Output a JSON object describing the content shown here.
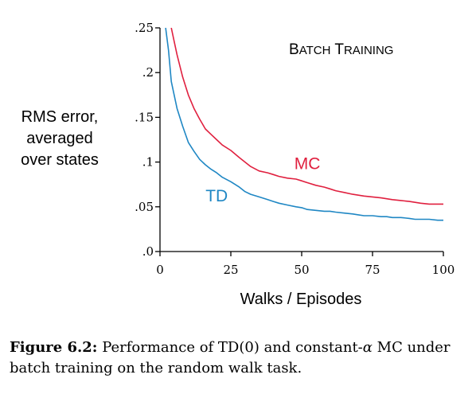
{
  "chart_data": {
    "type": "line",
    "title_lead": [
      "B",
      "T"
    ],
    "title_rest": [
      "ATCH",
      "RAINING"
    ],
    "xlabel": "Walks / Episodes",
    "ylabel_lines": [
      "RMS error,",
      "averaged",
      "over states"
    ],
    "xlim": [
      0,
      100
    ],
    "ylim": [
      0,
      0.25
    ],
    "xticks": [
      0,
      25,
      50,
      75,
      100
    ],
    "xtick_labels": [
      "0",
      "25",
      "50",
      "75",
      "100"
    ],
    "yticks": [
      0,
      0.05,
      0.1,
      0.15,
      0.2,
      0.25
    ],
    "ytick_labels": [
      ".0",
      ".05",
      ".1",
      ".15",
      ".2",
      ".25"
    ],
    "series": [
      {
        "name": "MC",
        "color": "#e0203f",
        "x": [
          4,
          5,
          6,
          8,
          10,
          12,
          14,
          16,
          18,
          20,
          22,
          25,
          28,
          30,
          32,
          35,
          38,
          40,
          42,
          45,
          48,
          50,
          52,
          55,
          58,
          60,
          62,
          65,
          68,
          70,
          72,
          75,
          78,
          80,
          82,
          85,
          88,
          90,
          92,
          95,
          98,
          100
        ],
        "y": [
          0.25,
          0.235,
          0.22,
          0.195,
          0.175,
          0.16,
          0.148,
          0.137,
          0.131,
          0.125,
          0.119,
          0.113,
          0.105,
          0.1,
          0.095,
          0.09,
          0.088,
          0.086,
          0.084,
          0.082,
          0.081,
          0.079,
          0.077,
          0.074,
          0.072,
          0.07,
          0.068,
          0.066,
          0.064,
          0.063,
          0.062,
          0.061,
          0.06,
          0.059,
          0.058,
          0.057,
          0.056,
          0.055,
          0.054,
          0.053,
          0.053,
          0.053
        ]
      },
      {
        "name": "TD",
        "color": "#1f87c4",
        "x": [
          2,
          3,
          4,
          5,
          6,
          8,
          10,
          12,
          14,
          16,
          18,
          20,
          22,
          25,
          28,
          30,
          32,
          35,
          38,
          40,
          42,
          45,
          48,
          50,
          52,
          55,
          58,
          60,
          62,
          65,
          68,
          70,
          72,
          75,
          78,
          80,
          82,
          85,
          88,
          90,
          92,
          95,
          98,
          100
        ],
        "y": [
          0.25,
          0.225,
          0.19,
          0.175,
          0.16,
          0.14,
          0.122,
          0.112,
          0.103,
          0.097,
          0.092,
          0.088,
          0.083,
          0.078,
          0.072,
          0.067,
          0.064,
          0.061,
          0.058,
          0.056,
          0.054,
          0.052,
          0.05,
          0.049,
          0.047,
          0.046,
          0.045,
          0.045,
          0.044,
          0.043,
          0.042,
          0.041,
          0.04,
          0.04,
          0.039,
          0.039,
          0.038,
          0.038,
          0.037,
          0.036,
          0.036,
          0.036,
          0.035,
          0.035
        ]
      }
    ]
  },
  "caption": {
    "label": "Figure 6.2:",
    "text_before_alpha": "Performance of TD(0) and constant-",
    "alpha": "α",
    "text_after_alpha": " MC under batch training on the random walk task."
  }
}
